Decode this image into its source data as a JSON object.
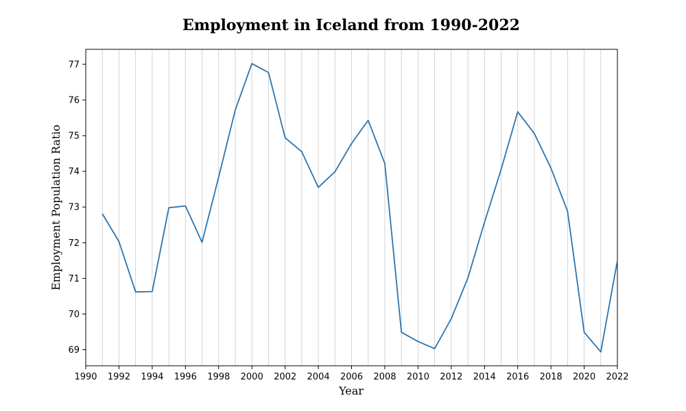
{
  "chart_data": {
    "type": "line",
    "title": "Employment in Iceland from 1990-2022",
    "xlabel": "Year",
    "ylabel": "Employment Population Ratio",
    "xlim": [
      1990,
      2022
    ],
    "ylim": [
      68.55,
      77.42
    ],
    "x_ticks": [
      1990,
      1992,
      1994,
      1996,
      1998,
      2000,
      2002,
      2004,
      2006,
      2008,
      2010,
      2012,
      2014,
      2016,
      2018,
      2020,
      2022
    ],
    "y_ticks": [
      69,
      70,
      71,
      72,
      73,
      74,
      75,
      76,
      77
    ],
    "vertical_grid": "every year",
    "horizontal_grid": false,
    "line_color": "#2b73ad",
    "series": [
      {
        "x": [
          1991,
          1992,
          1993,
          1994,
          1995,
          1996,
          1997,
          1998,
          1999,
          2000,
          2001,
          2002,
          2003,
          2004,
          2005,
          2006,
          2007,
          2008,
          2009,
          2010,
          2011,
          2012,
          2013,
          2014,
          2015,
          2016,
          2017,
          2018,
          2019,
          2020,
          2021,
          2022
        ],
        "y": [
          72.81,
          72.03,
          70.62,
          70.63,
          72.98,
          73.03,
          72.01,
          73.84,
          75.72,
          77.02,
          76.77,
          74.94,
          74.55,
          73.55,
          73.99,
          74.78,
          75.43,
          74.22,
          69.49,
          69.23,
          69.03,
          69.87,
          71.01,
          72.57,
          74.05,
          75.67,
          75.06,
          74.09,
          72.88,
          69.49,
          68.94,
          71.5
        ]
      }
    ]
  }
}
